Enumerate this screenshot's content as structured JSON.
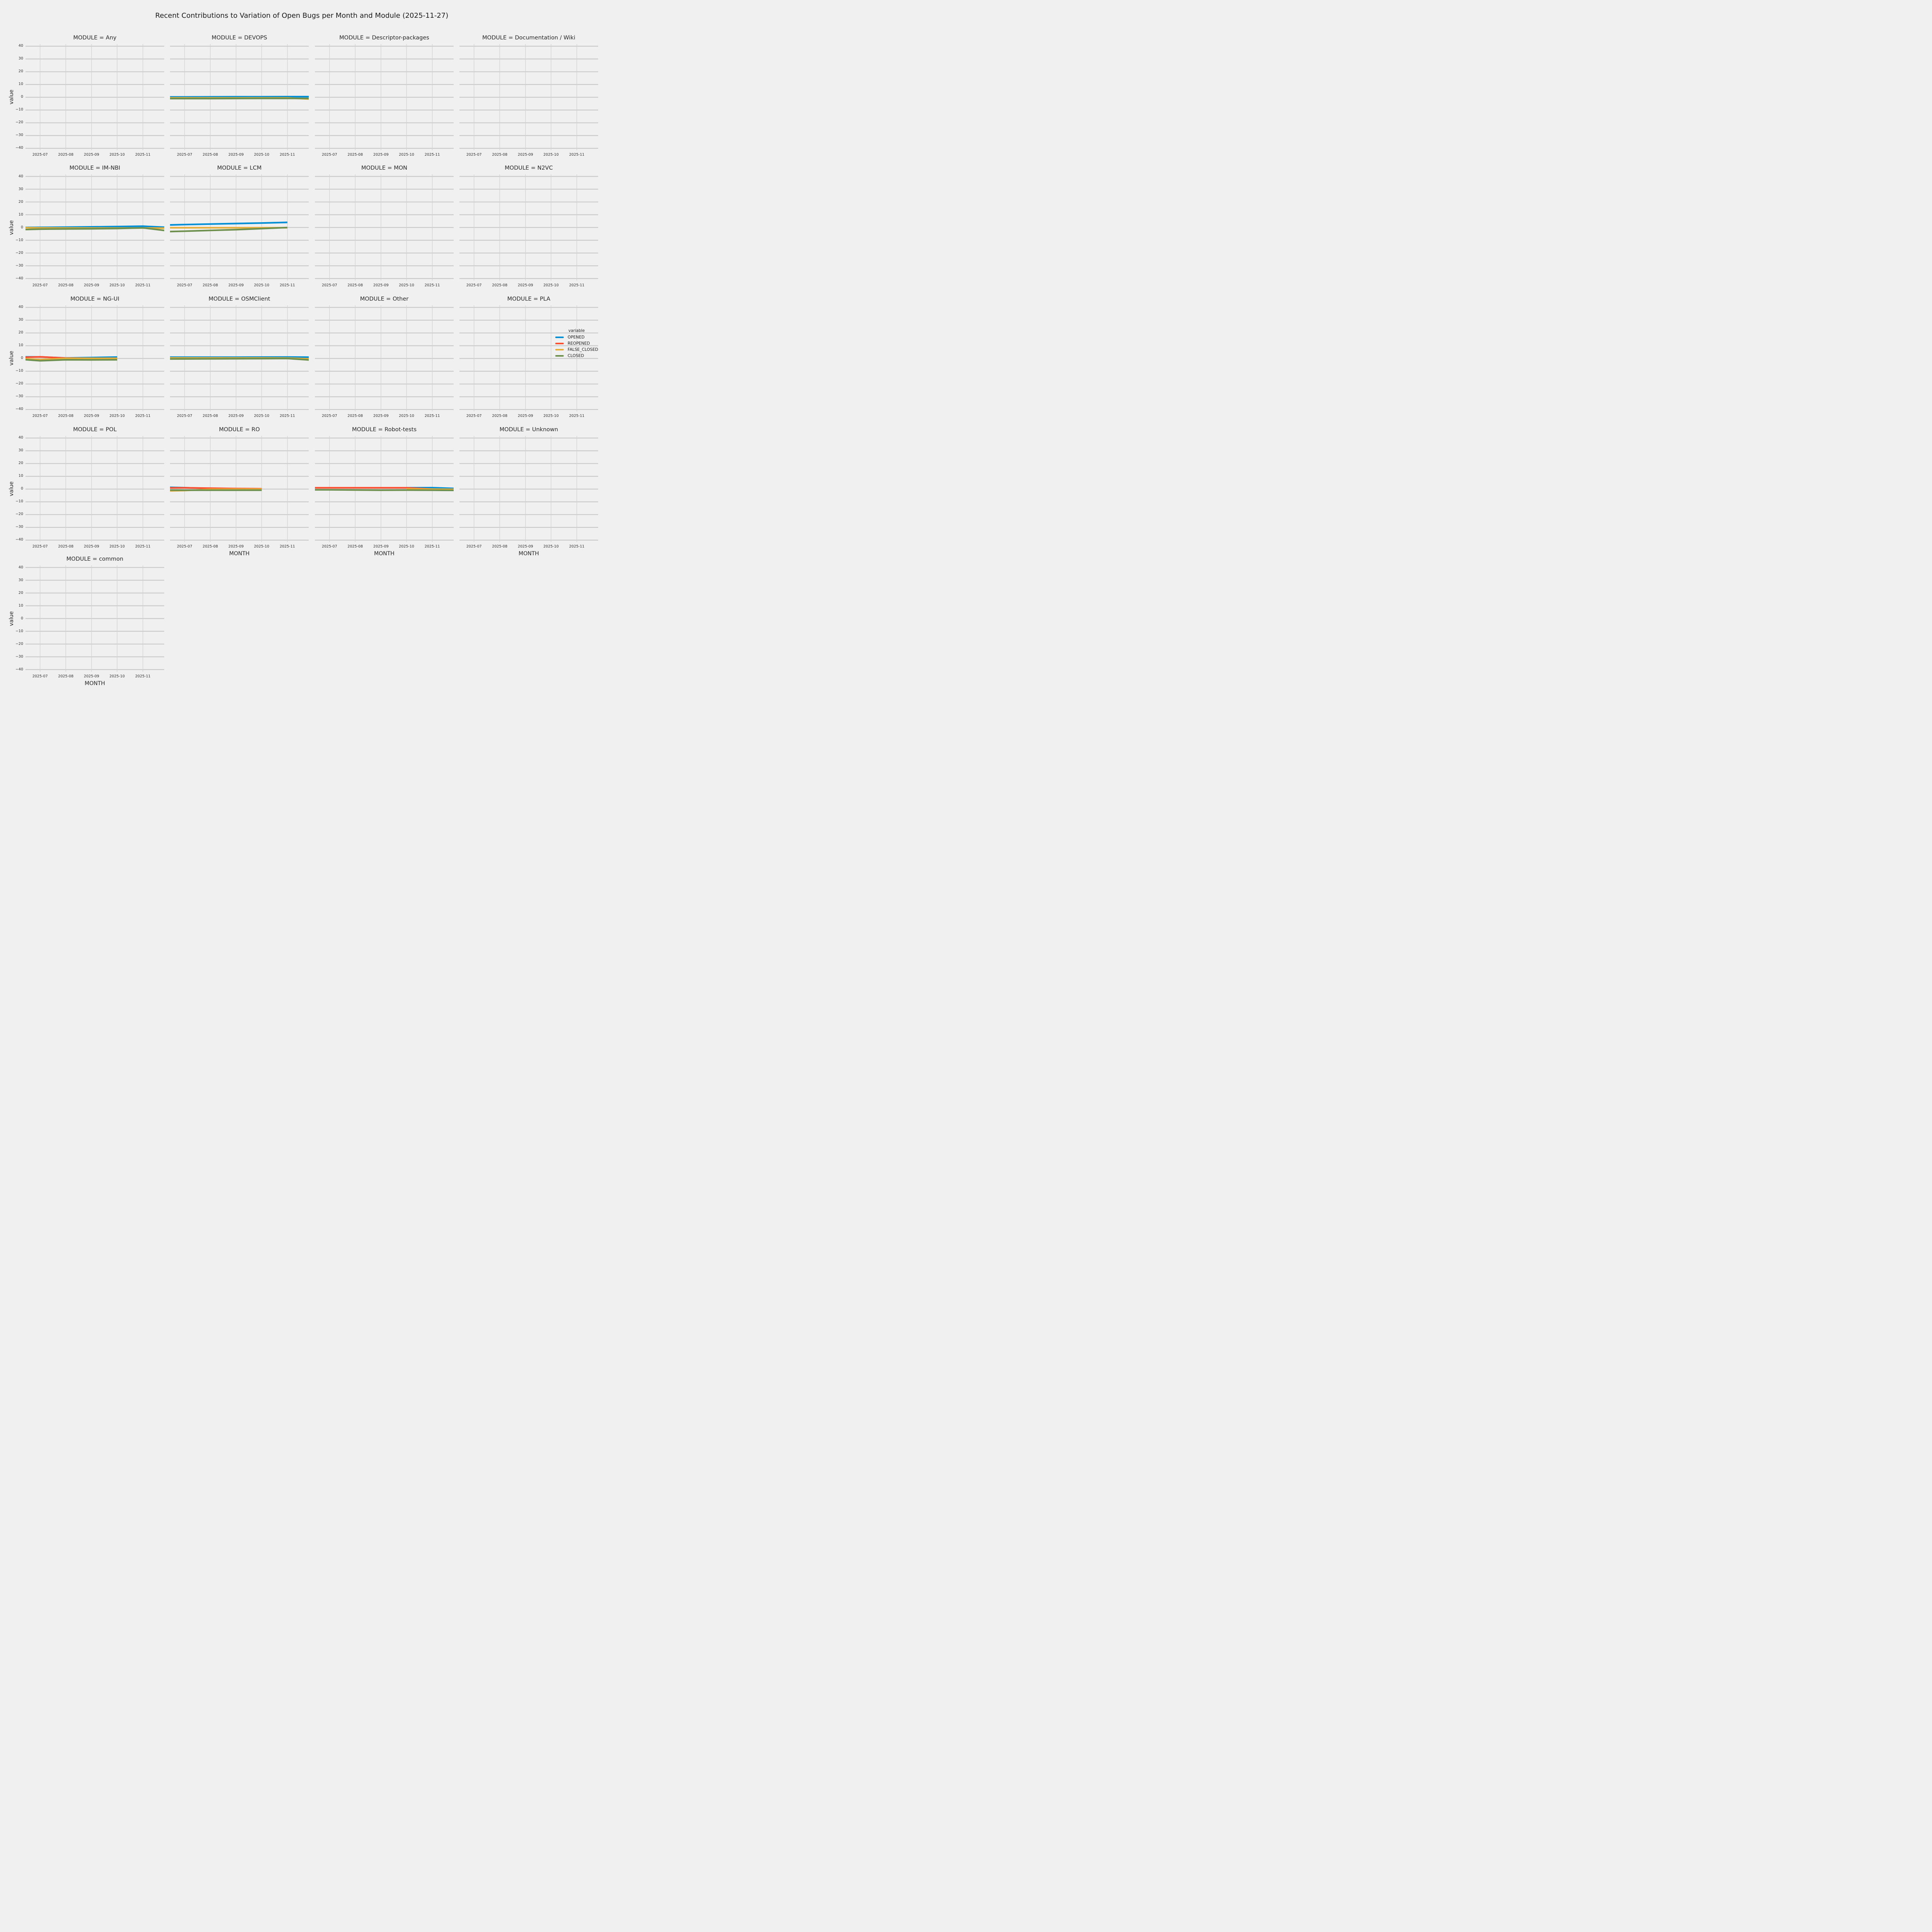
{
  "figure": {
    "title": "Recent Contributions to Variation of Open Bugs per Month and Module (2025-11-27)"
  },
  "axes": {
    "x_label": "MONTH",
    "y_label": "value",
    "x_tick_labels": [
      "2025-07",
      "2025-08",
      "2025-09",
      "2025-10",
      "2025-11"
    ],
    "y_tick_values": [
      40,
      30,
      20,
      10,
      0,
      -10,
      -20,
      -30,
      -40
    ],
    "y_range": [
      -41.7,
      41.7
    ],
    "grid": true
  },
  "legend": {
    "title": "variable",
    "position": "right-center",
    "items": [
      {
        "label": "OPENED",
        "color": "#008fd5"
      },
      {
        "label": "REOPENED",
        "color": "#fc4f30"
      },
      {
        "label": "FALSE_CLOSED",
        "color": "#e5ae38"
      },
      {
        "label": "CLOSED",
        "color": "#6d904f"
      }
    ]
  },
  "chart_data": {
    "type": "line",
    "facet_by": "MODULE",
    "facet_columns": 4,
    "x_field": "MONTH",
    "months": [
      "2025-06",
      "2025-07",
      "2025-08",
      "2025-09",
      "2025-10",
      "2025-11",
      "2025-11-27"
    ],
    "series_order": [
      "OPENED",
      "REOPENED",
      "FALSE_CLOSED",
      "CLOSED"
    ],
    "modules": [
      {
        "name": "Any",
        "title": "MODULE = Any",
        "series": {}
      },
      {
        "name": "DEVOPS",
        "title": "MODULE = DEVOPS",
        "series": {
          "OPENED": [
            [
              "2025-06",
              0.3
            ],
            [
              "2025-07",
              0.3
            ],
            [
              "2025-08",
              0.35
            ],
            [
              "2025-09",
              0.4
            ],
            [
              "2025-10",
              0.45
            ],
            [
              "2025-11",
              0.5
            ],
            [
              "2025-11-27",
              0.5
            ]
          ],
          "FALSE_CLOSED": [
            [
              "2025-06",
              -0.45
            ],
            [
              "2025-07",
              -0.45
            ],
            [
              "2025-08",
              -0.5
            ],
            [
              "2025-09",
              -0.5
            ],
            [
              "2025-10",
              -0.5
            ],
            [
              "2025-11",
              -0.5
            ],
            [
              "2025-11-27",
              -1.4
            ]
          ],
          "CLOSED": [
            [
              "2025-06",
              -1.0
            ],
            [
              "2025-07",
              -1.0
            ],
            [
              "2025-08",
              -1.0
            ],
            [
              "2025-09",
              -0.95
            ],
            [
              "2025-10",
              -0.9
            ],
            [
              "2025-11",
              -0.9
            ],
            [
              "2025-11-27",
              -0.9
            ]
          ]
        }
      },
      {
        "name": "Descriptor-packages",
        "title": "MODULE = Descriptor-packages",
        "series": {}
      },
      {
        "name": "Documentation / Wiki",
        "title": "MODULE = Documentation / Wiki",
        "series": {}
      },
      {
        "name": "IM-NBI",
        "title": "MODULE = IM-NBI",
        "series": {
          "OPENED": [
            [
              "2025-06",
              0.0
            ],
            [
              "2025-07",
              0.1
            ],
            [
              "2025-08",
              0.3
            ],
            [
              "2025-09",
              0.5
            ],
            [
              "2025-10",
              0.7
            ],
            [
              "2025-11",
              1.0
            ],
            [
              "2025-11-27",
              0.2
            ]
          ],
          "FALSE_CLOSED": [
            [
              "2025-06",
              0.0
            ],
            [
              "2025-07",
              -0.3
            ],
            [
              "2025-08",
              -0.4
            ],
            [
              "2025-09",
              -0.45
            ],
            [
              "2025-10",
              -0.45
            ],
            [
              "2025-11",
              -0.4
            ],
            [
              "2025-11-27",
              -0.5
            ]
          ],
          "CLOSED": [
            [
              "2025-06",
              -1.8
            ],
            [
              "2025-07",
              -1.3
            ],
            [
              "2025-08",
              -1.15
            ],
            [
              "2025-09",
              -1.0
            ],
            [
              "2025-10",
              -0.8
            ],
            [
              "2025-11",
              -0.3
            ],
            [
              "2025-11-27",
              -2.4
            ]
          ]
        }
      },
      {
        "name": "LCM",
        "title": "MODULE = LCM",
        "series": {
          "OPENED": [
            [
              "2025-06",
              1.8
            ],
            [
              "2025-07",
              2.3
            ],
            [
              "2025-08",
              2.7
            ],
            [
              "2025-09",
              3.1
            ],
            [
              "2025-10",
              3.5
            ],
            [
              "2025-11",
              4.0
            ]
          ],
          "FALSE_CLOSED": [
            [
              "2025-06",
              -0.2
            ],
            [
              "2025-07",
              -0.2
            ],
            [
              "2025-08",
              -0.2
            ],
            [
              "2025-09",
              -0.2
            ],
            [
              "2025-10",
              -0.2
            ],
            [
              "2025-11",
              -0.2
            ]
          ],
          "CLOSED": [
            [
              "2025-06",
              -3.4
            ],
            [
              "2025-07",
              -2.9
            ],
            [
              "2025-08",
              -2.3
            ],
            [
              "2025-09",
              -1.7
            ],
            [
              "2025-10",
              -0.9
            ],
            [
              "2025-11",
              0.0
            ]
          ]
        }
      },
      {
        "name": "MON",
        "title": "MODULE = MON",
        "series": {}
      },
      {
        "name": "N2VC",
        "title": "MODULE = N2VC",
        "series": {}
      },
      {
        "name": "NG-UI",
        "title": "MODULE = NG-UI",
        "series": {
          "OPENED": [
            [
              "2025-06",
              1.3
            ],
            [
              "2025-07",
              1.25
            ],
            [
              "2025-08",
              0.45
            ],
            [
              "2025-09",
              0.75
            ],
            [
              "2025-10",
              1.1
            ]
          ],
          "REOPENED": [
            [
              "2025-06",
              0.7
            ],
            [
              "2025-07",
              1.3
            ],
            [
              "2025-08",
              0.35
            ],
            [
              "2025-09",
              0.15
            ],
            [
              "2025-10",
              0.15
            ]
          ],
          "FALSE_CLOSED": [
            [
              "2025-06",
              0.2
            ],
            [
              "2025-07",
              -0.85
            ],
            [
              "2025-08",
              0.1
            ],
            [
              "2025-09",
              0.1
            ],
            [
              "2025-10",
              0.1
            ]
          ],
          "CLOSED": [
            [
              "2025-06",
              -0.3
            ],
            [
              "2025-07",
              -1.8
            ],
            [
              "2025-08",
              -1.0
            ],
            [
              "2025-09",
              -1.1
            ],
            [
              "2025-10",
              -1.0
            ]
          ]
        }
      },
      {
        "name": "OSMClient",
        "title": "MODULE = OSMClient",
        "series": {
          "OPENED": [
            [
              "2025-06",
              1.0
            ],
            [
              "2025-07",
              1.0
            ],
            [
              "2025-08",
              1.0
            ],
            [
              "2025-09",
              1.05
            ],
            [
              "2025-10",
              1.1
            ],
            [
              "2025-11",
              1.15
            ],
            [
              "2025-11-27",
              1.0
            ]
          ],
          "FALSE_CLOSED": [
            [
              "2025-06",
              0.4
            ],
            [
              "2025-07",
              0.4
            ],
            [
              "2025-08",
              0.4
            ],
            [
              "2025-09",
              0.4
            ],
            [
              "2025-10",
              0.4
            ],
            [
              "2025-11",
              0.35
            ],
            [
              "2025-11-27",
              -0.3
            ]
          ],
          "CLOSED": [
            [
              "2025-06",
              -0.45
            ],
            [
              "2025-07",
              -0.35
            ],
            [
              "2025-08",
              -0.3
            ],
            [
              "2025-09",
              -0.2
            ],
            [
              "2025-10",
              -0.1
            ],
            [
              "2025-11",
              0.0
            ],
            [
              "2025-11-27",
              -1.2
            ]
          ]
        }
      },
      {
        "name": "Other",
        "title": "MODULE = Other",
        "series": {}
      },
      {
        "name": "PLA",
        "title": "MODULE = PLA",
        "series": {}
      },
      {
        "name": "POL",
        "title": "MODULE = POL",
        "series": {}
      },
      {
        "name": "RO",
        "title": "MODULE = RO",
        "series": {
          "OPENED": [
            [
              "2025-06",
              1.6
            ],
            [
              "2025-07",
              1.1
            ],
            [
              "2025-08",
              0.5
            ],
            [
              "2025-09",
              0.3
            ],
            [
              "2025-10",
              0.2
            ]
          ],
          "REOPENED": [
            [
              "2025-06",
              0.9
            ],
            [
              "2025-07",
              1.0
            ],
            [
              "2025-08",
              0.7
            ],
            [
              "2025-09",
              0.45
            ],
            [
              "2025-10",
              0.25
            ]
          ],
          "FALSE_CLOSED": [
            [
              "2025-06",
              -1.6
            ],
            [
              "2025-07",
              -1.15
            ],
            [
              "2025-08",
              -0.2
            ],
            [
              "2025-09",
              0.0
            ],
            [
              "2025-10",
              -0.05
            ]
          ],
          "CLOSED": [
            [
              "2025-06",
              -0.75
            ],
            [
              "2025-07",
              -0.9
            ],
            [
              "2025-08",
              -0.9
            ],
            [
              "2025-09",
              -0.9
            ],
            [
              "2025-10",
              -0.85
            ]
          ]
        }
      },
      {
        "name": "Robot-tests",
        "title": "MODULE = Robot-tests",
        "series": {
          "OPENED": [
            [
              "2025-10",
              1.0
            ],
            [
              "2025-11",
              1.1
            ],
            [
              "2025-11-27",
              0.5
            ]
          ],
          "REOPENED": [
            [
              "2025-06",
              1.0
            ],
            [
              "2025-07",
              1.0
            ],
            [
              "2025-08",
              1.0
            ],
            [
              "2025-09",
              1.0
            ],
            [
              "2025-10",
              1.0
            ],
            [
              "2025-11",
              0.0
            ]
          ],
          "FALSE_CLOSED": [
            [
              "2025-10",
              0.15
            ],
            [
              "2025-11",
              0.0
            ],
            [
              "2025-11-27",
              -0.2
            ]
          ],
          "CLOSED": [
            [
              "2025-06",
              -0.55
            ],
            [
              "2025-07",
              -0.6
            ],
            [
              "2025-08",
              -0.7
            ],
            [
              "2025-09",
              -0.85
            ],
            [
              "2025-10",
              -0.8
            ],
            [
              "2025-11",
              -0.9
            ],
            [
              "2025-11-27",
              -1.0
            ]
          ]
        }
      },
      {
        "name": "Unknown",
        "title": "MODULE = Unknown",
        "series": {}
      },
      {
        "name": "common",
        "title": "MODULE = common",
        "series": {}
      }
    ]
  },
  "style": {
    "background": "#f0f0f0",
    "grid_color_h": "#c9c9c9",
    "grid_color_v": "#d2d2d2",
    "text_color": "#262626"
  }
}
